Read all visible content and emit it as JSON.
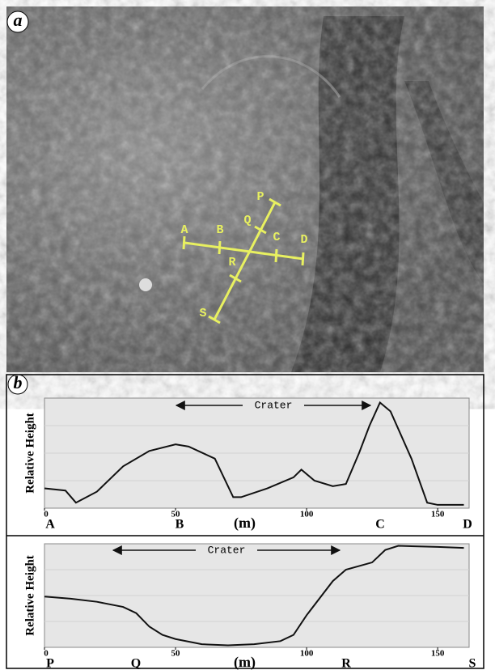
{
  "panels": {
    "a": "a",
    "b": "b"
  },
  "image_labels": [
    "A",
    "B",
    "C",
    "D",
    "P",
    "Q",
    "R",
    "S"
  ],
  "chart_data": [
    {
      "type": "line",
      "ylabel": "Relative Height",
      "xlabel": "(m)",
      "annotation": "Crater",
      "color": "#111111",
      "xlim": [
        0,
        162
      ],
      "xticks": [
        0,
        50,
        100,
        150
      ],
      "ylim": [
        0,
        100
      ],
      "markers": [
        "A",
        "B",
        "C",
        "D"
      ],
      "x": [
        0,
        8,
        12,
        20,
        30,
        40,
        50,
        55,
        65,
        72,
        75,
        85,
        95,
        98,
        103,
        110,
        115,
        120,
        124,
        128,
        132,
        140,
        146,
        150,
        160
      ],
      "values": [
        18,
        16,
        5,
        15,
        38,
        52,
        58,
        56,
        45,
        10,
        10,
        18,
        28,
        35,
        25,
        20,
        22,
        50,
        75,
        96,
        88,
        45,
        5,
        3,
        3
      ]
    },
    {
      "type": "line",
      "ylabel": "Relative Height",
      "xlabel": "(m)",
      "annotation": "Crater",
      "color": "#111111",
      "xlim": [
        0,
        162
      ],
      "xticks": [
        0,
        50,
        100,
        150
      ],
      "ylim": [
        0,
        100
      ],
      "markers": [
        "P",
        "Q",
        "R",
        "S"
      ],
      "x": [
        0,
        10,
        20,
        30,
        35,
        40,
        45,
        50,
        60,
        70,
        80,
        90,
        95,
        100,
        110,
        115,
        125,
        130,
        135,
        150,
        160
      ],
      "values": [
        49,
        47,
        44,
        39,
        33,
        20,
        12,
        8,
        3,
        2,
        3,
        6,
        12,
        31,
        64,
        75,
        82,
        94,
        98,
        97,
        96
      ]
    }
  ]
}
